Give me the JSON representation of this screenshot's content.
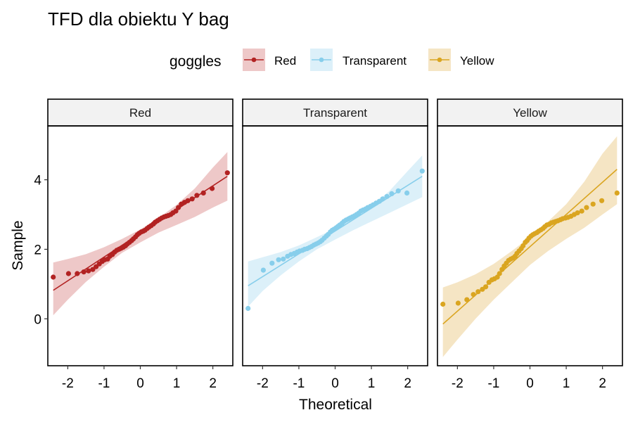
{
  "title": "TFD dla obiektu Y bag",
  "legend": {
    "title": "goggles",
    "items": [
      {
        "label": "Red",
        "color": "#b22222"
      },
      {
        "label": "Transparent",
        "color": "#87ceeb"
      },
      {
        "label": "Yellow",
        "color": "#daa520"
      }
    ]
  },
  "chart_data": {
    "type": "scatter",
    "subtype": "qq-plot with reference line and confidence band",
    "xlabel": "Theoretical",
    "ylabel": "Sample",
    "xlim": [
      -2.55,
      2.55
    ],
    "ylim": [
      -1.35,
      5.55
    ],
    "xticks": [
      -2,
      -1,
      0,
      1,
      2
    ],
    "xtick_labels": [
      "-2",
      "-1",
      "0",
      "1",
      "2"
    ],
    "yticks": [
      0,
      2,
      4
    ],
    "ytick_labels": [
      "0",
      "2",
      "4"
    ],
    "grid": false,
    "legend_position": "top",
    "facets": [
      "Red",
      "Transparent",
      "Yellow"
    ],
    "series": [
      {
        "name": "Red",
        "color": "#b22222",
        "band_color": "#eec8c8",
        "line": {
          "x": [
            -2.4,
            2.4
          ],
          "y": [
            0.82,
            4.1
          ]
        },
        "band": {
          "x": [
            -2.4,
            -2.0,
            -1.5,
            -1.0,
            -0.5,
            0.0,
            0.5,
            1.0,
            1.5,
            2.0,
            2.4
          ],
          "upper": [
            1.62,
            1.72,
            1.86,
            2.06,
            2.3,
            2.57,
            2.9,
            3.28,
            3.75,
            4.35,
            4.8
          ],
          "lower": [
            0.1,
            0.55,
            1.06,
            1.5,
            1.9,
            2.2,
            2.48,
            2.7,
            2.93,
            3.2,
            3.4
          ]
        },
        "points": {
          "x": [
            -2.4,
            -1.98,
            -1.74,
            -1.56,
            -1.43,
            -1.31,
            -1.22,
            -1.13,
            -1.05,
            -0.98,
            -0.9,
            -0.84,
            -0.77,
            -0.71,
            -0.65,
            -0.59,
            -0.53,
            -0.47,
            -0.41,
            -0.36,
            -0.3,
            -0.24,
            -0.19,
            -0.13,
            -0.08,
            -0.03,
            0.03,
            0.08,
            0.13,
            0.19,
            0.24,
            0.3,
            0.36,
            0.41,
            0.47,
            0.53,
            0.59,
            0.65,
            0.71,
            0.77,
            0.84,
            0.9,
            0.98,
            1.05,
            1.13,
            1.22,
            1.31,
            1.43,
            1.56,
            1.74,
            1.98,
            2.4
          ],
          "y": [
            1.2,
            1.3,
            1.3,
            1.35,
            1.38,
            1.42,
            1.5,
            1.58,
            1.65,
            1.7,
            1.72,
            1.8,
            1.85,
            1.92,
            1.97,
            2.0,
            2.03,
            2.06,
            2.1,
            2.15,
            2.2,
            2.25,
            2.3,
            2.36,
            2.42,
            2.46,
            2.5,
            2.52,
            2.55,
            2.6,
            2.64,
            2.68,
            2.73,
            2.78,
            2.82,
            2.86,
            2.9,
            2.93,
            2.95,
            2.97,
            3.0,
            3.05,
            3.1,
            3.2,
            3.3,
            3.35,
            3.4,
            3.45,
            3.55,
            3.62,
            3.75,
            4.2
          ]
        }
      },
      {
        "name": "Transparent",
        "color": "#87ceeb",
        "band_color": "#dcf0f9",
        "line": {
          "x": [
            -2.4,
            2.4
          ],
          "y": [
            0.95,
            4.1
          ]
        },
        "band": {
          "x": [
            -2.4,
            -2.0,
            -1.5,
            -1.0,
            -0.5,
            0.0,
            0.5,
            1.0,
            1.5,
            2.0,
            2.4
          ],
          "upper": [
            1.65,
            1.77,
            1.92,
            2.11,
            2.35,
            2.6,
            2.9,
            3.25,
            3.68,
            4.25,
            4.7
          ],
          "lower": [
            0.35,
            0.8,
            1.25,
            1.65,
            2.0,
            2.28,
            2.55,
            2.8,
            3.05,
            3.3,
            3.5
          ]
        },
        "points": {
          "x": [
            -2.4,
            -1.98,
            -1.74,
            -1.56,
            -1.43,
            -1.31,
            -1.22,
            -1.13,
            -1.05,
            -0.98,
            -0.9,
            -0.84,
            -0.77,
            -0.71,
            -0.65,
            -0.59,
            -0.53,
            -0.47,
            -0.41,
            -0.36,
            -0.3,
            -0.24,
            -0.19,
            -0.13,
            -0.08,
            -0.03,
            0.03,
            0.08,
            0.13,
            0.19,
            0.24,
            0.3,
            0.36,
            0.41,
            0.47,
            0.53,
            0.59,
            0.65,
            0.71,
            0.77,
            0.84,
            0.9,
            0.98,
            1.05,
            1.13,
            1.22,
            1.31,
            1.43,
            1.56,
            1.74,
            1.98,
            2.4
          ],
          "y": [
            0.3,
            1.4,
            1.6,
            1.7,
            1.72,
            1.8,
            1.85,
            1.88,
            1.92,
            1.95,
            1.97,
            2.0,
            2.02,
            2.05,
            2.08,
            2.12,
            2.15,
            2.18,
            2.22,
            2.26,
            2.32,
            2.38,
            2.43,
            2.5,
            2.55,
            2.58,
            2.62,
            2.66,
            2.7,
            2.75,
            2.8,
            2.84,
            2.87,
            2.9,
            2.93,
            2.96,
            3.0,
            3.04,
            3.1,
            3.13,
            3.16,
            3.2,
            3.24,
            3.28,
            3.33,
            3.38,
            3.45,
            3.52,
            3.6,
            3.68,
            3.62,
            4.25
          ]
        }
      },
      {
        "name": "Yellow",
        "color": "#daa520",
        "band_color": "#f5e5c4",
        "line": {
          "x": [
            -2.4,
            2.4
          ],
          "y": [
            -0.15,
            4.3
          ]
        },
        "band": {
          "x": [
            -2.4,
            -2.0,
            -1.5,
            -1.0,
            -0.5,
            0.0,
            0.5,
            1.0,
            1.5,
            2.0,
            2.4
          ],
          "upper": [
            0.9,
            1.05,
            1.28,
            1.58,
            1.95,
            2.35,
            2.8,
            3.3,
            3.95,
            4.75,
            5.25
          ],
          "lower": [
            -1.1,
            -0.6,
            0.0,
            0.55,
            1.05,
            1.55,
            1.95,
            2.3,
            2.62,
            3.0,
            3.3
          ]
        },
        "points": {
          "x": [
            -2.4,
            -1.98,
            -1.74,
            -1.56,
            -1.43,
            -1.31,
            -1.22,
            -1.13,
            -1.05,
            -0.98,
            -0.9,
            -0.84,
            -0.77,
            -0.71,
            -0.65,
            -0.59,
            -0.53,
            -0.47,
            -0.41,
            -0.36,
            -0.3,
            -0.24,
            -0.19,
            -0.13,
            -0.08,
            -0.03,
            0.03,
            0.08,
            0.13,
            0.19,
            0.24,
            0.3,
            0.36,
            0.41,
            0.47,
            0.53,
            0.59,
            0.65,
            0.71,
            0.77,
            0.84,
            0.9,
            0.98,
            1.05,
            1.13,
            1.22,
            1.31,
            1.43,
            1.56,
            1.74,
            1.98,
            2.4
          ],
          "y": [
            0.42,
            0.45,
            0.55,
            0.7,
            0.78,
            0.85,
            0.92,
            1.05,
            1.12,
            1.15,
            1.2,
            1.3,
            1.42,
            1.52,
            1.6,
            1.68,
            1.72,
            1.75,
            1.8,
            1.88,
            1.95,
            2.02,
            2.1,
            2.2,
            2.25,
            2.32,
            2.38,
            2.42,
            2.45,
            2.48,
            2.52,
            2.56,
            2.6,
            2.65,
            2.7,
            2.72,
            2.76,
            2.78,
            2.8,
            2.82,
            2.85,
            2.88,
            2.9,
            2.92,
            2.95,
            3.0,
            3.05,
            3.1,
            3.2,
            3.3,
            3.4,
            3.62
          ]
        }
      }
    ]
  }
}
